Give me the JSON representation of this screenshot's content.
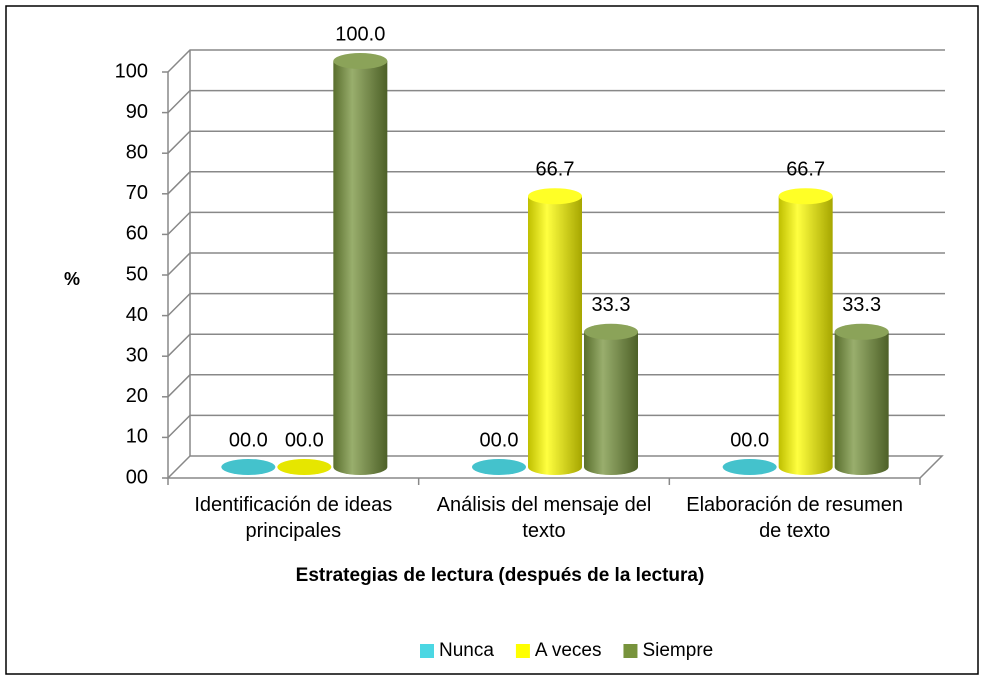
{
  "chart_data": {
    "type": "bar3d",
    "xlabel": "Estrategias de lectura (después de la lectura)",
    "ylabel": "%",
    "categories": [
      "Identificación de ideas principales",
      "Análisis del mensaje del texto",
      "Elaboración de resumen de texto"
    ],
    "series": [
      {
        "name": "Nunca",
        "color": "#4bd7e3",
        "values": [
          0,
          0,
          0
        ],
        "value_labels": [
          "00.0",
          "00.0",
          "00.0"
        ]
      },
      {
        "name": "A veces",
        "color": "#ffff00",
        "values": [
          0,
          66.7,
          66.7
        ],
        "value_labels": [
          "00.0",
          "66.7",
          "66.7"
        ]
      },
      {
        "name": "Siempre",
        "color": "#77933c",
        "values": [
          100,
          33.3,
          33.3
        ],
        "value_labels": [
          "100.0",
          "33.3",
          "33.3"
        ]
      }
    ],
    "ylim": [
      0,
      100
    ],
    "yticks": [
      {
        "value": 0,
        "label": "00"
      },
      10,
      20,
      30,
      40,
      50,
      60,
      70,
      80,
      90,
      100
    ],
    "grid": true,
    "legend": "bottom"
  }
}
